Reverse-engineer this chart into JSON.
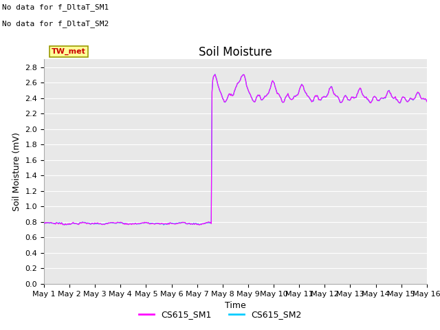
{
  "title": "Soil Moisture",
  "xlabel": "Time",
  "ylabel": "Soil Moisture (mV)",
  "ylim": [
    0.0,
    2.9
  ],
  "yticks": [
    0.0,
    0.2,
    0.4,
    0.6,
    0.8,
    1.0,
    1.2,
    1.4,
    1.6,
    1.8,
    2.0,
    2.2,
    2.4,
    2.6,
    2.8
  ],
  "background_color": "#e8e8e8",
  "grid_color": "#ffffff",
  "no_data_text1": "No data for f_DltaT_SM1",
  "no_data_text2": "No data for f_DltaT_SM2",
  "tw_met_label": "TW_met",
  "tw_met_color": "#cc0000",
  "tw_met_bg": "#ffff99",
  "tw_met_border": "#999900",
  "legend_label1": "CS615_SM1",
  "legend_label2": "CS615_SM2",
  "line_color1": "#ff00ff",
  "line_color2": "#00ccff",
  "x_tick_labels": [
    "May 1",
    "May 2",
    "May 3",
    "May 4",
    "May 5",
    "May 6",
    "May 7",
    "May 8",
    "May 9",
    "May 10",
    "May 11",
    "May 12",
    "May 13",
    "May 14",
    "May 15",
    "May 16"
  ],
  "title_fontsize": 12,
  "axis_label_fontsize": 9,
  "tick_fontsize": 8,
  "nodata_fontsize": 8,
  "twmet_fontsize": 8
}
